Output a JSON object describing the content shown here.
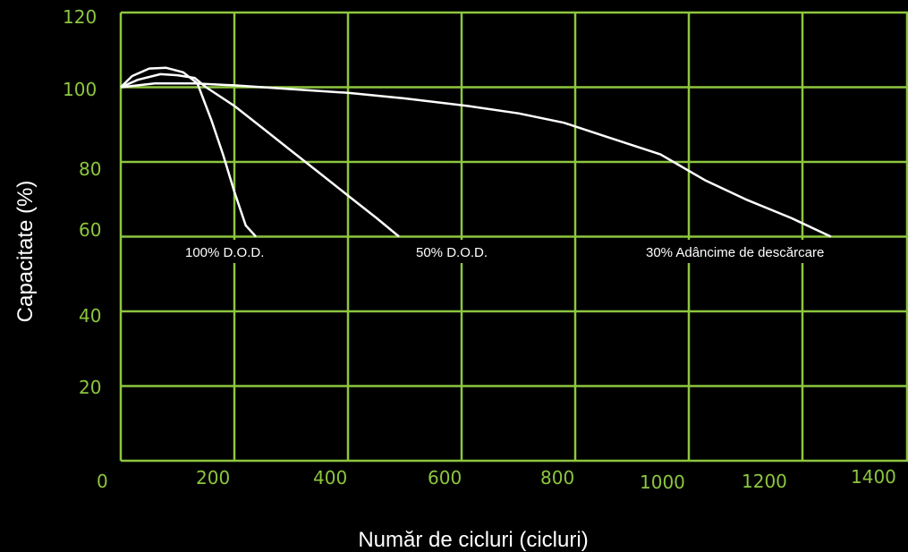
{
  "chart_data": {
    "type": "line",
    "title": "",
    "xlabel": "Număr de cicluri (cicluri)",
    "ylabel": "Capacitate (%)",
    "xlim": [
      0,
      1400
    ],
    "ylim": [
      0,
      120
    ],
    "x_ticks": [
      "0",
      "200",
      "400",
      "600",
      "800",
      "1000",
      "1200",
      "1400"
    ],
    "y_ticks": [
      "20",
      "40",
      "60",
      "80",
      "100",
      "120"
    ],
    "grid": true,
    "colors": {
      "background": "#000000",
      "grid": "#8dc63f",
      "tick_text": "#8dc63f",
      "lines": "#ffffff",
      "axis_text": "#ffffff"
    },
    "series": [
      {
        "label": "100% D.O.D.",
        "x": [
          0,
          20,
          50,
          80,
          110,
          135,
          160,
          180,
          200,
          220,
          238
        ],
        "y": [
          100,
          103,
          105,
          105.2,
          104,
          101,
          91,
          82,
          72,
          63,
          60
        ]
      },
      {
        "label": "50% D.O.D.",
        "x": [
          0,
          30,
          70,
          100,
          130,
          150,
          200,
          250,
          300,
          350,
          400,
          450,
          490
        ],
        "y": [
          100,
          102,
          103.5,
          103.2,
          102.5,
          100,
          95,
          89,
          83,
          77,
          71,
          65,
          60
        ]
      },
      {
        "label": "30% Adâncime de descărcare",
        "x": [
          0,
          60,
          130,
          200,
          300,
          400,
          500,
          610,
          700,
          780,
          850,
          950,
          1030,
          1100,
          1180,
          1250
        ],
        "y": [
          100,
          101,
          101,
          100.5,
          99.5,
          98.5,
          97,
          95,
          93,
          90.5,
          87,
          82,
          75,
          70,
          65,
          60
        ]
      }
    ]
  }
}
